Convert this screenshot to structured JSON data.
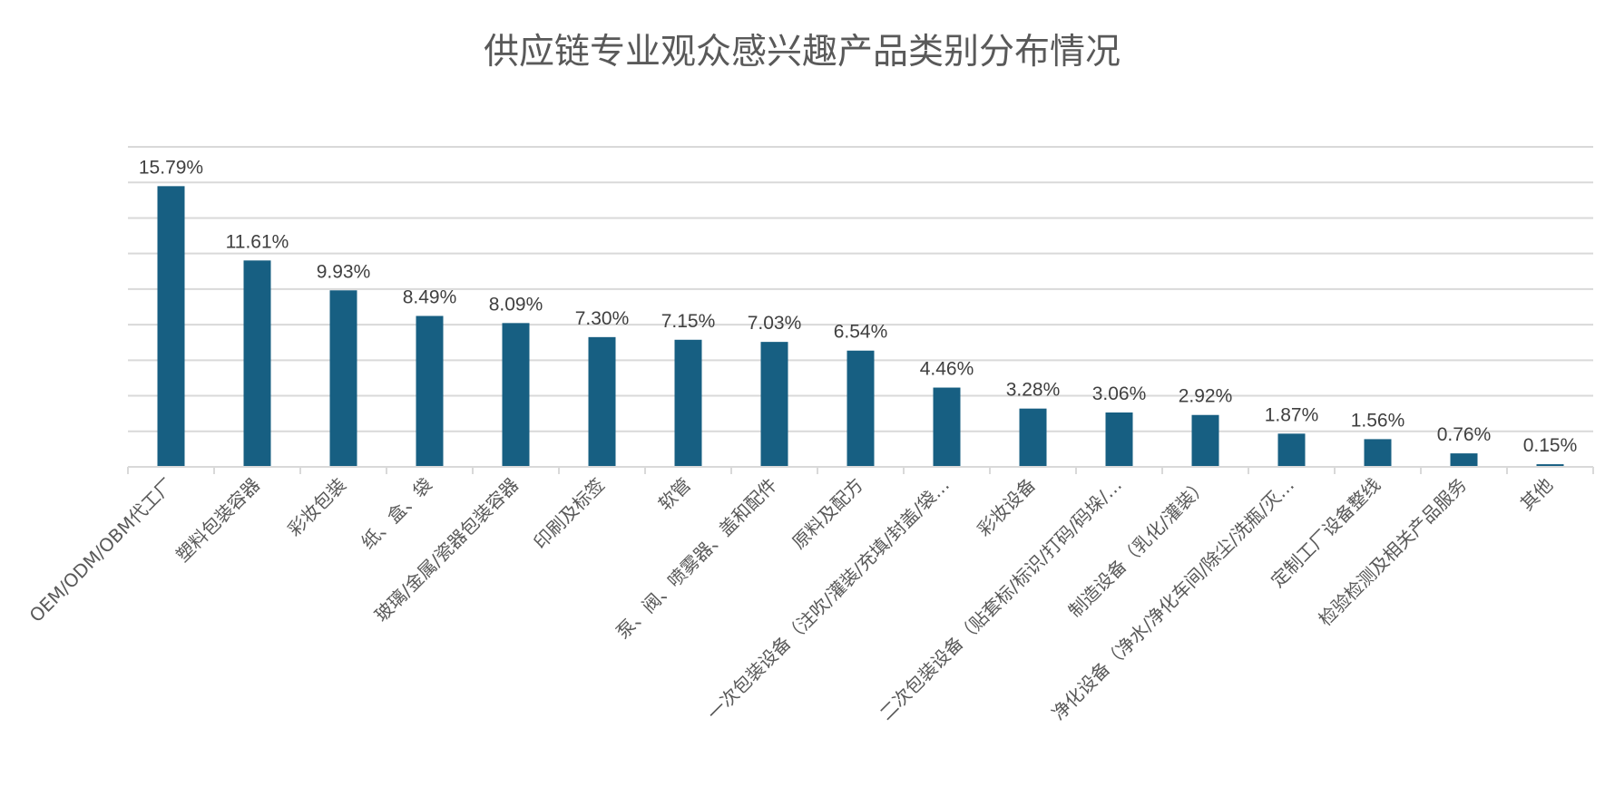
{
  "chart_data": {
    "type": "bar",
    "title": "供应链专业观众感兴趣产品类别分布情况",
    "categories": [
      "OEM/ODM/OBM代工厂",
      "塑料包装容器",
      "彩妆包装",
      "纸、盒、袋",
      "玻璃/金属/瓷器包装容器",
      "印刷及标签",
      "软管",
      "泵、阀、喷雾器、盖和配件",
      "原料及配方",
      "一次包装设备（注吹/灌装/充填/封盖/袋…",
      "彩妆设备",
      "二次包装设备（贴套标/标识/打码/码垛/…",
      "制造设备（乳化/灌装）",
      "净化设备（净水/净化车间/除尘/洗瓶/灭…",
      "定制工厂设备整线",
      "检验检测及相关产品服务",
      "其他"
    ],
    "values": [
      15.79,
      11.61,
      9.93,
      8.49,
      8.09,
      7.3,
      7.15,
      7.03,
      6.54,
      4.46,
      3.28,
      3.06,
      2.92,
      1.87,
      1.56,
      0.76,
      0.15
    ],
    "data_labels": [
      "15.79%",
      "11.61%",
      "9.93%",
      "8.49%",
      "8.09%",
      "7.30%",
      "7.15%",
      "7.03%",
      "6.54%",
      "4.46%",
      "3.28%",
      "3.06%",
      "2.92%",
      "1.87%",
      "1.56%",
      "0.76%",
      "0.15%"
    ],
    "unit": "%",
    "ylim": [
      0,
      18
    ],
    "grid_step": 2,
    "grid": true,
    "y_axis_visible": false,
    "legend": "none",
    "xlabel": "",
    "ylabel": "",
    "colors": {
      "bar": "#175F82",
      "grid": "#D9D9D9",
      "title": "#595959",
      "text": "#404040"
    }
  }
}
